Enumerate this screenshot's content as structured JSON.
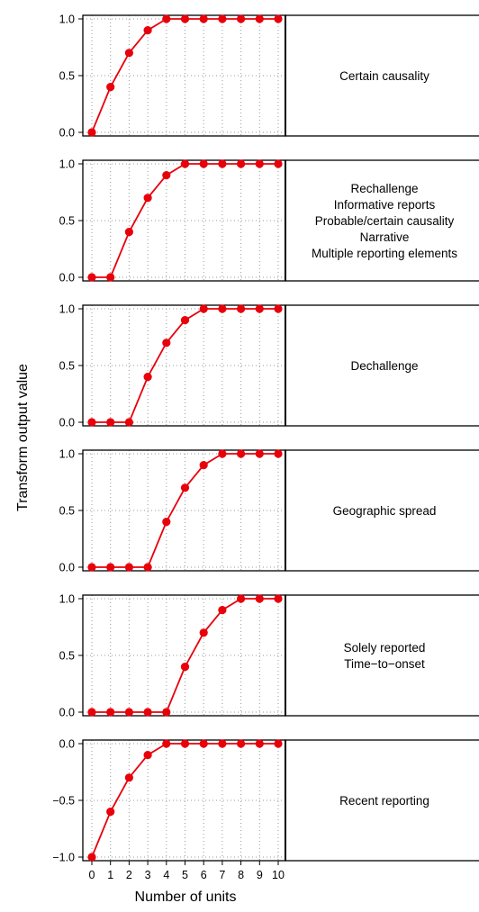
{
  "chart_data": {
    "type": "line",
    "xlabel": "Number of units",
    "ylabel": "Transform output value",
    "x": [
      0,
      1,
      2,
      3,
      4,
      5,
      6,
      7,
      8,
      9,
      10
    ],
    "x_tick_labels": [
      "0",
      "1",
      "2",
      "3",
      "4",
      "5",
      "6",
      "7",
      "8",
      "9",
      "10"
    ],
    "grid": true,
    "series_color": "#e8000b",
    "panels": [
      {
        "strip_lines": [
          "Certain causality"
        ],
        "values": [
          0,
          0.4,
          0.7,
          0.9,
          1.0,
          1.0,
          1.0,
          1.0,
          1.0,
          1.0,
          1.0
        ],
        "ylim": [
          0,
          1
        ],
        "y_tick_labels": [
          "0.0",
          "0.5",
          "1.0"
        ],
        "y_ticks": [
          0,
          0.5,
          1
        ]
      },
      {
        "strip_lines": [
          "Rechallenge",
          "Informative reports",
          "Probable/certain causality",
          "Narrative",
          "Multiple reporting elements"
        ],
        "values": [
          0,
          0,
          0.4,
          0.7,
          0.9,
          1.0,
          1.0,
          1.0,
          1.0,
          1.0,
          1.0
        ],
        "ylim": [
          0,
          1
        ],
        "y_tick_labels": [
          "0.0",
          "0.5",
          "1.0"
        ],
        "y_ticks": [
          0,
          0.5,
          1
        ]
      },
      {
        "strip_lines": [
          "Dechallenge"
        ],
        "values": [
          0,
          0,
          0,
          0.4,
          0.7,
          0.9,
          1.0,
          1.0,
          1.0,
          1.0,
          1.0
        ],
        "ylim": [
          0,
          1
        ],
        "y_tick_labels": [
          "0.0",
          "0.5",
          "1.0"
        ],
        "y_ticks": [
          0,
          0.5,
          1
        ]
      },
      {
        "strip_lines": [
          "Geographic spread"
        ],
        "values": [
          0,
          0,
          0,
          0,
          0.4,
          0.7,
          0.9,
          1.0,
          1.0,
          1.0,
          1.0
        ],
        "ylim": [
          0,
          1
        ],
        "y_tick_labels": [
          "0.0",
          "0.5",
          "1.0"
        ],
        "y_ticks": [
          0,
          0.5,
          1
        ]
      },
      {
        "strip_lines": [
          "Solely reported",
          "Time−to−onset"
        ],
        "values": [
          0,
          0,
          0,
          0,
          0,
          0.4,
          0.7,
          0.9,
          1.0,
          1.0,
          1.0
        ],
        "ylim": [
          0,
          1
        ],
        "y_tick_labels": [
          "0.0",
          "0.5",
          "1.0"
        ],
        "y_ticks": [
          0,
          0.5,
          1
        ]
      },
      {
        "strip_lines": [
          "Recent reporting"
        ],
        "values": [
          -1.0,
          -0.6,
          -0.3,
          -0.1,
          0,
          0,
          0,
          0,
          0,
          0,
          0
        ],
        "ylim": [
          -1,
          0
        ],
        "y_tick_labels": [
          "−1.0",
          "−0.5",
          "0.0"
        ],
        "y_ticks": [
          -1,
          -0.5,
          0
        ]
      }
    ]
  }
}
